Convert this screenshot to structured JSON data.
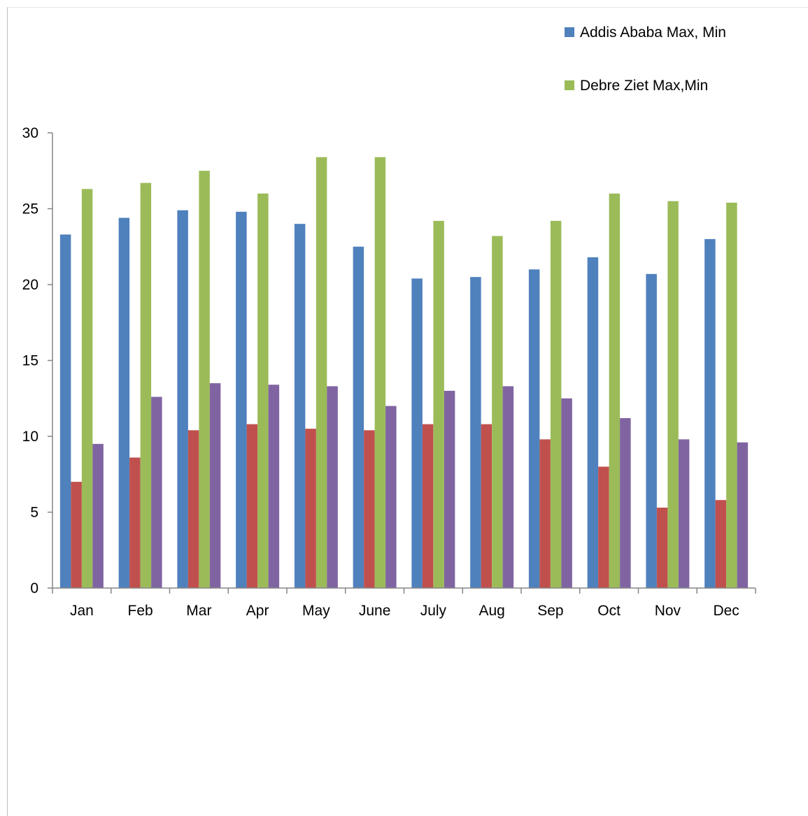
{
  "chart_data": {
    "type": "bar",
    "title": "",
    "xlabel": "",
    "ylabel": "",
    "ylim": [
      0,
      30
    ],
    "yticks": [
      0,
      5,
      10,
      15,
      20,
      25,
      30
    ],
    "grid": false,
    "legend_placement": "top-right",
    "categories": [
      "Jan",
      "Feb",
      "Mar",
      "Apr",
      "May",
      "June",
      "July",
      "Aug",
      "Sep",
      "Oct",
      "Nov",
      "Dec"
    ],
    "legend": [
      {
        "label": "Addis Ababa Max, Min",
        "color": "#4F81BD"
      },
      {
        "label": "Debre Ziet Max,Min",
        "color": "#9BBB59"
      }
    ],
    "series": [
      {
        "color": "#4F81BD",
        "values": [
          23.3,
          24.4,
          24.9,
          24.8,
          24.0,
          22.5,
          20.4,
          20.5,
          21.0,
          21.8,
          20.7,
          23.0
        ]
      },
      {
        "color": "#C0504D",
        "values": [
          7.0,
          8.6,
          10.4,
          10.8,
          10.5,
          10.4,
          10.8,
          10.8,
          9.8,
          8.0,
          5.3,
          5.8
        ]
      },
      {
        "color": "#9BBB59",
        "values": [
          26.3,
          26.7,
          27.5,
          26.0,
          28.4,
          28.4,
          24.2,
          23.2,
          24.2,
          26.0,
          25.5,
          25.4
        ]
      },
      {
        "color": "#8064A2",
        "values": [
          9.5,
          12.6,
          13.5,
          13.4,
          13.3,
          12.0,
          13.0,
          13.3,
          12.5,
          11.2,
          9.8,
          9.6
        ]
      }
    ]
  }
}
